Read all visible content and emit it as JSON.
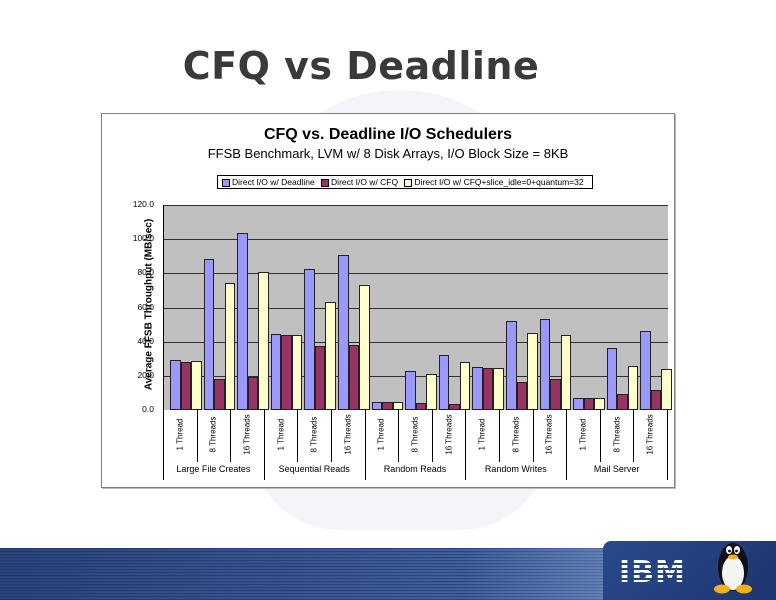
{
  "slide": {
    "title": "CFQ vs Deadline"
  },
  "footer": {
    "logo_text": "IBM",
    "mascot": "tux-penguin-icon"
  },
  "chart_data": {
    "type": "bar",
    "title": "CFQ vs. Deadline I/O Schedulers",
    "subtitle": "FFSB Benchmark, LVM w/ 8 Disk Arrays, I/O Block Size = 8KB",
    "xlabel": "",
    "ylabel": "Average FFSB Throughput (MB/sec)",
    "ylim": [
      0,
      120
    ],
    "yticks": [
      "0.0",
      "20.0",
      "40.0",
      "60.0",
      "80.0",
      "100.0",
      "120.0"
    ],
    "grid": true,
    "legend_position": "top",
    "groups": [
      "Large File Creates",
      "Sequential Reads",
      "Random Reads",
      "Random Writes",
      "Mail Server"
    ],
    "categories": [
      "1 Thread",
      "8 Threads",
      "16 Threads",
      "1 Thread",
      "8 Threads",
      "16 Threads",
      "1 Thread",
      "8 Threads",
      "16 Threads",
      "1 Thread",
      "8 Threads",
      "16 Threads",
      "1 Thread",
      "8 Threads",
      "16 Threads"
    ],
    "series": [
      {
        "name": "Direct I/O w/ Deadline",
        "color": "#9999ff",
        "values": [
          29.2,
          88.4,
          103.4,
          44.7,
          82.6,
          90.8,
          4.7,
          22.7,
          32.1,
          25.3,
          52.3,
          53.1,
          7.0,
          36.3,
          46.2
        ]
      },
      {
        "name": "Direct I/O w/ CFQ",
        "color": "#993366",
        "values": [
          28.2,
          18.1,
          19.4,
          43.9,
          37.3,
          38.3,
          4.7,
          4.1,
          3.3,
          24.7,
          16.5,
          17.9,
          7.0,
          9.3,
          11.7
        ]
      },
      {
        "name": "Direct I/O w/ CFQ+slice_idle=0+quantum=32",
        "color": "#ffffcc",
        "values": [
          28.8,
          74.4,
          80.7,
          44.1,
          63.2,
          73.1,
          4.7,
          21.0,
          28.2,
          24.7,
          44.9,
          44.1,
          7.0,
          25.7,
          24.1
        ]
      }
    ]
  }
}
